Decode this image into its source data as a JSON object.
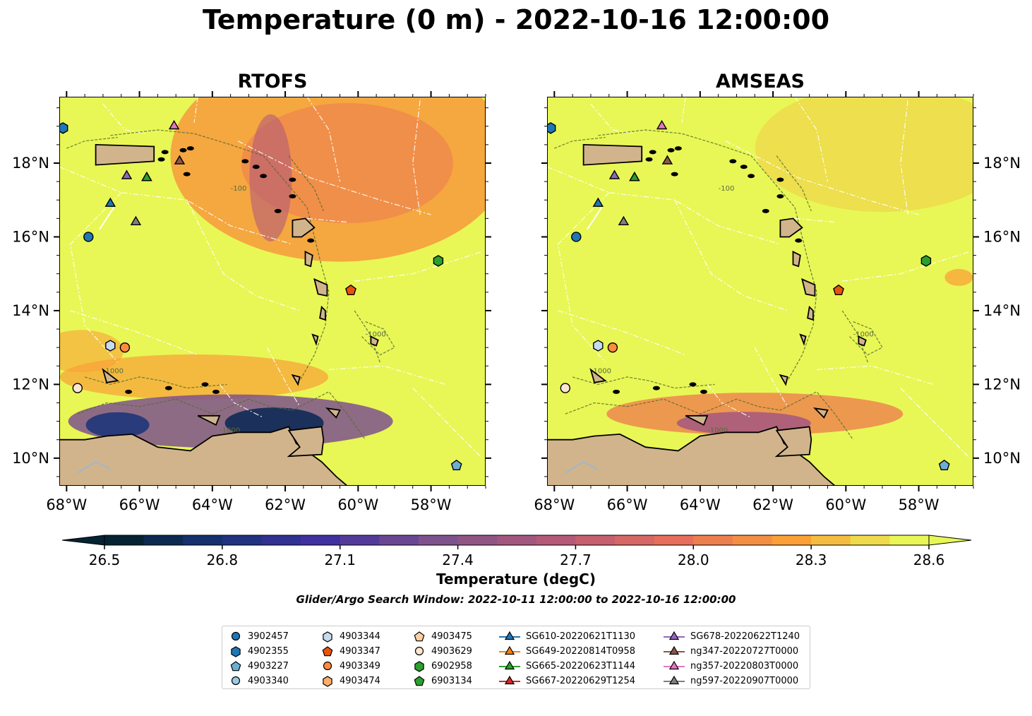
{
  "title": "Temperature (0 m) - 2022-10-16 12:00:00",
  "panels": [
    {
      "title": "RTOFS",
      "model": "rtofs"
    },
    {
      "title": "AMSEAS",
      "model": "amseas"
    }
  ],
  "axes": {
    "lon_ticks": [
      "68°W",
      "66°W",
      "64°W",
      "62°W",
      "60°W",
      "58°W"
    ],
    "lat_ticks": [
      "10°N",
      "12°N",
      "14°N",
      "16°N",
      "18°N"
    ],
    "lon_range": [
      -68.2,
      -56.5
    ],
    "lat_range": [
      9.25,
      19.8
    ]
  },
  "colorbar": {
    "label": "Temperature (degC)",
    "ticks": [
      "26.5",
      "26.8",
      "27.1",
      "27.4",
      "27.7",
      "28.0",
      "28.3",
      "28.6"
    ],
    "range": [
      26.5,
      28.6
    ],
    "colormap": "thermal",
    "extend": "both"
  },
  "search_window": "Glider/Argo Search Window: 2022-10-11 12:00:00 to 2022-10-16 12:00:00",
  "contour_labels": [
    "-100",
    "-1000"
  ],
  "colors": {
    "land": "#d2b48c",
    "ocean_warm": "#e8f756",
    "contour": "#556b2f"
  },
  "legend": [
    {
      "label": "3902457",
      "marker": "circle",
      "color": "#1f77b4"
    },
    {
      "label": "4902355",
      "marker": "hexagon",
      "color": "#1f77b4"
    },
    {
      "label": "4903227",
      "marker": "pentagon",
      "color": "#6baed6"
    },
    {
      "label": "4903340",
      "marker": "circle",
      "color": "#9ecae1"
    },
    {
      "label": "4903344",
      "marker": "hexagon",
      "color": "#c6dbef"
    },
    {
      "label": "4903347",
      "marker": "pentagon",
      "color": "#e6550d"
    },
    {
      "label": "4903349",
      "marker": "circle",
      "color": "#fd8d3c"
    },
    {
      "label": "4903474",
      "marker": "hexagon",
      "color": "#fdae6b"
    },
    {
      "label": "4903475",
      "marker": "pentagon",
      "color": "#fdd0a2"
    },
    {
      "label": "4903629",
      "marker": "circle",
      "color": "#fde6d2"
    },
    {
      "label": "6902958",
      "marker": "hexagon",
      "color": "#2ca02c"
    },
    {
      "label": "6903134",
      "marker": "pentagon",
      "color": "#2ca02c"
    },
    {
      "label": "SG610-20220621T1130",
      "marker": "triangle",
      "color": "#1f77b4"
    },
    {
      "label": "SG649-20220814T0958",
      "marker": "triangle",
      "color": "#ff7f0e"
    },
    {
      "label": "SG665-20220623T1144",
      "marker": "triangle",
      "color": "#2ca02c"
    },
    {
      "label": "SG667-20220629T1254",
      "marker": "triangle",
      "color": "#d62728"
    },
    {
      "label": "SG678-20220622T1240",
      "marker": "triangle",
      "color": "#9467bd"
    },
    {
      "label": "ng347-20220727T0000",
      "marker": "triangle",
      "color": "#8c564b"
    },
    {
      "label": "ng357-20220803T0000",
      "marker": "triangle",
      "color": "#e377c2"
    },
    {
      "label": "ng597-20220907T0000",
      "marker": "triangle",
      "color": "#7f7f7f"
    }
  ],
  "chart_data": {
    "type": "heatmap",
    "variable": "Temperature",
    "depth_m": 0,
    "time": "2022-10-16 12:00:00",
    "units": "degC",
    "platforms": [
      {
        "id": "3902457",
        "lon": -67.4,
        "lat": 16.0
      },
      {
        "id": "4902355",
        "lon": -68.1,
        "lat": 18.95
      },
      {
        "id": "4903227",
        "lon": -57.3,
        "lat": 9.8
      },
      {
        "id": "4903344",
        "lon": -66.8,
        "lat": 13.05
      },
      {
        "id": "4903347",
        "lon": -60.2,
        "lat": 14.55
      },
      {
        "id": "4903349",
        "lon": -66.4,
        "lat": 13.0
      },
      {
        "id": "4903629",
        "lon": -67.7,
        "lat": 11.9
      },
      {
        "id": "6902958",
        "lon": -57.8,
        "lat": 15.35
      },
      {
        "id": "SG610-20220621T1130",
        "lon": -66.8,
        "lat": 16.9
      },
      {
        "id": "SG649-20220814T0958",
        "lon": -65.8,
        "lat": 17.6
      },
      {
        "id": "SG665-20220623T1144",
        "lon": -65.8,
        "lat": 17.6
      },
      {
        "id": "SG678-20220622T1240",
        "lon": -66.35,
        "lat": 17.65
      },
      {
        "id": "ng347-20220727T0000",
        "lon": -64.9,
        "lat": 18.05
      },
      {
        "id": "ng357-20220803T0000",
        "lon": -65.05,
        "lat": 19.0
      },
      {
        "id": "ng597-20220907T0000",
        "lon": -66.1,
        "lat": 16.4
      }
    ]
  }
}
